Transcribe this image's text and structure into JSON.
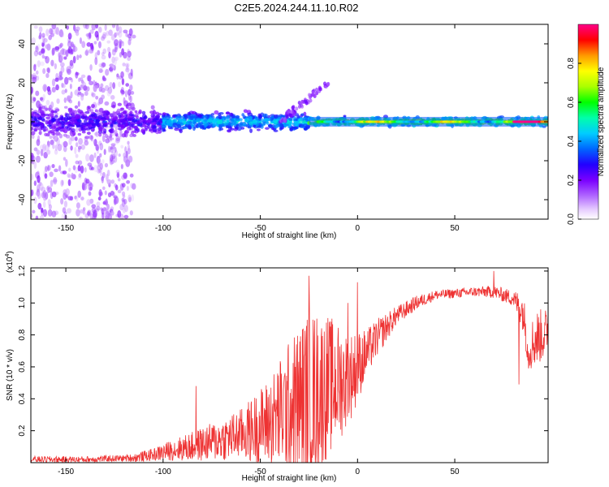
{
  "title": "C2E5.2024.244.11.10.R02",
  "chart_data": [
    {
      "type": "heatmap",
      "name": "spectrogram",
      "xlabel": "Height of straight line (km)",
      "ylabel": "Frequency (Hz)",
      "xlim": [
        -168,
        98
      ],
      "ylim": [
        -50,
        50
      ],
      "xticks": [
        -150,
        -100,
        -50,
        0,
        50
      ],
      "xtick_labels": [
        "-150",
        "-100",
        "-50",
        "0",
        "50"
      ],
      "yticks": [
        -40,
        -20,
        0,
        20,
        40
      ],
      "ytick_labels": [
        "-40",
        "-20",
        "0",
        "20",
        "40"
      ],
      "colorbar": {
        "label": "Normalized spectral amplitude",
        "range": [
          0.0,
          1.0
        ],
        "ticks": [
          0.0,
          0.2,
          0.4,
          0.6,
          0.8
        ],
        "tick_labels": [
          "0.0",
          "0.2",
          "0.4",
          "0.6",
          "0.8"
        ]
      },
      "features": [
        {
          "kind": "scattered noise",
          "x_range": [
            -168,
            -115
          ],
          "y_range": [
            -50,
            50
          ],
          "amplitude": 0.05
        },
        {
          "kind": "broad band",
          "x_range": [
            -168,
            -100
          ],
          "center_hz": 0,
          "halfwidth_hz": 10,
          "amplitude": 0.15
        },
        {
          "kind": "band",
          "x_range": [
            -100,
            -25
          ],
          "center_hz": 0,
          "halfwidth_hz": 6,
          "amplitude": 0.3
        },
        {
          "kind": "narrow band",
          "x_range": [
            -25,
            98
          ],
          "center_hz": 0,
          "halfwidth_hz": 3,
          "amplitude": 0.5
        },
        {
          "kind": "rising branch",
          "x_from": -40,
          "x_to": -15,
          "hz_from": 0,
          "hz_to": 20,
          "amplitude": 0.1
        }
      ]
    },
    {
      "type": "line",
      "name": "snr",
      "xlabel": "Height of straight line (km)",
      "ylabel": "SNR (10 * v/v)",
      "scale_label": "(x10",
      "scale_exponent": "4",
      "scale_suffix": ")",
      "xlim": [
        -168,
        98
      ],
      "ylim": [
        0,
        1.22
      ],
      "xticks": [
        -150,
        -100,
        -50,
        0,
        50
      ],
      "xtick_labels": [
        "-150",
        "-100",
        "-50",
        "0",
        "50"
      ],
      "yticks": [
        0.2,
        0.4,
        0.6,
        0.8,
        1.0,
        1.2
      ],
      "ytick_labels": [
        "0.2",
        "0.4",
        "0.6",
        "0.8",
        "1.0",
        "1.2"
      ],
      "color": "#ee3333",
      "trend": {
        "x": [
          -168,
          -140,
          -115,
          -105,
          -95,
          -85,
          -75,
          -65,
          -55,
          -45,
          -35,
          -25,
          -15,
          -5,
          0,
          10,
          20,
          30,
          40,
          50,
          60,
          70,
          80,
          85,
          88,
          92,
          98
        ],
        "y": [
          0.02,
          0.02,
          0.03,
          0.05,
          0.08,
          0.1,
          0.13,
          0.16,
          0.2,
          0.26,
          0.35,
          0.42,
          0.48,
          0.52,
          0.6,
          0.78,
          0.92,
          1.0,
          1.05,
          1.06,
          1.07,
          1.07,
          1.03,
          0.95,
          0.72,
          0.78,
          0.82
        ]
      },
      "spread": {
        "x": [
          -168,
          -120,
          -105,
          -90,
          -75,
          -60,
          -45,
          -35,
          -25,
          -15,
          -5,
          5,
          20,
          40,
          60,
          80,
          85,
          92,
          98
        ],
        "y": [
          0.02,
          0.02,
          0.04,
          0.08,
          0.12,
          0.16,
          0.28,
          0.42,
          0.55,
          0.45,
          0.3,
          0.15,
          0.06,
          0.03,
          0.03,
          0.05,
          0.12,
          0.18,
          0.15
        ]
      },
      "peaks": [
        {
          "x": -25,
          "y": 1.17
        },
        {
          "x": 0,
          "y": 1.13
        },
        {
          "x": -5,
          "y": 1.0
        },
        {
          "x": 70,
          "y": 1.2
        },
        {
          "x": -83,
          "y": 0.48
        },
        {
          "x": 83,
          "y": 0.49
        },
        {
          "x": 88,
          "y": 0.59
        }
      ]
    }
  ]
}
